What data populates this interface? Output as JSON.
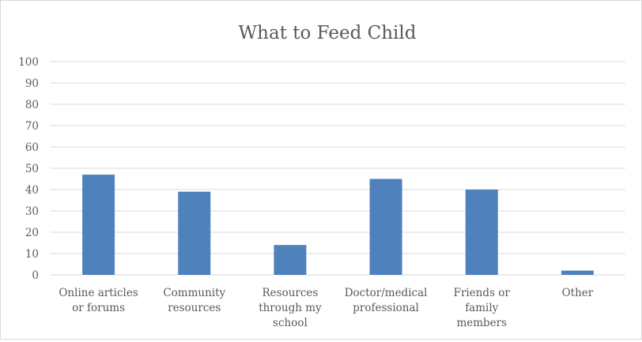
{
  "chart_data": {
    "type": "bar",
    "title": "What to Feed Child",
    "xlabel": "",
    "ylabel": "",
    "categories": [
      [
        "Online articles",
        "or forums"
      ],
      [
        "Community",
        "resources"
      ],
      [
        "Resources",
        "through my",
        "school"
      ],
      [
        "Doctor/medical",
        "professional"
      ],
      [
        "Friends or",
        "family",
        "members"
      ],
      [
        "Other"
      ]
    ],
    "values": [
      47,
      39,
      14,
      45,
      40,
      2
    ],
    "ylim": [
      0,
      100
    ],
    "yticks": [
      0,
      10,
      20,
      30,
      40,
      50,
      60,
      70,
      80,
      90,
      100
    ],
    "grid": true,
    "legend": "none",
    "colors": {
      "bar": "#4f81bd",
      "grid": "#d9d9d9",
      "text": "#595959"
    }
  }
}
